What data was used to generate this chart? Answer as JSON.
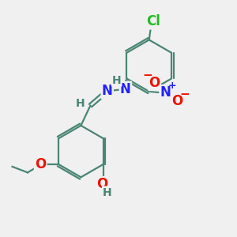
{
  "bg": "#f0f0f0",
  "bond_color": "#4a8575",
  "lw": 1.6,
  "colors": {
    "C": "#4a8575",
    "H": "#4a8575",
    "N": "#2222ff",
    "O": "#ee1100",
    "Cl": "#22bb22"
  },
  "fs_large": 12,
  "fs_small": 10,
  "xlim": [
    0,
    10
  ],
  "ylim": [
    0,
    10
  ]
}
